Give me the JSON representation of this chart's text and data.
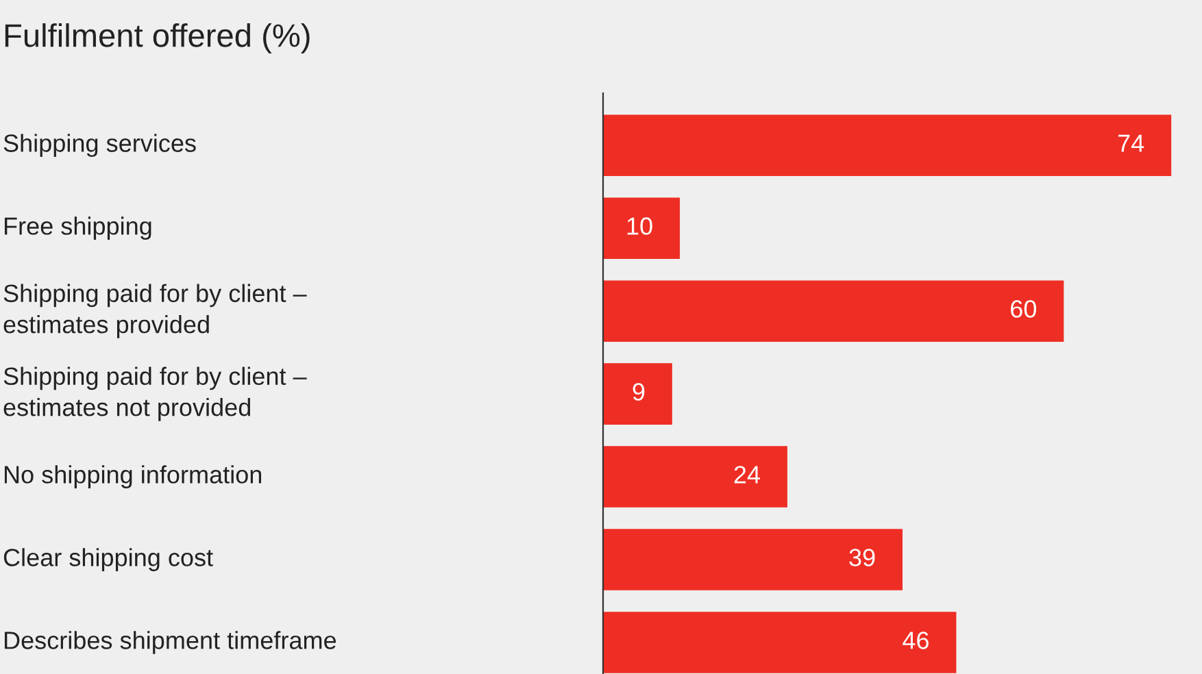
{
  "chart_data": {
    "type": "bar",
    "orientation": "horizontal",
    "title": "Fulfilment offered (%)",
    "categories": [
      "Shipping services",
      "Free shipping",
      "Shipping paid for by client –\nestimates provided",
      "Shipping paid for by client –\nestimates not provided",
      "No shipping information",
      "Clear shipping cost",
      "Describes shipment timeframe"
    ],
    "values": [
      74,
      10,
      60,
      9,
      24,
      39,
      46
    ],
    "color": "#ee2e24",
    "xlim": [
      0,
      78
    ],
    "data_labels": true
  }
}
